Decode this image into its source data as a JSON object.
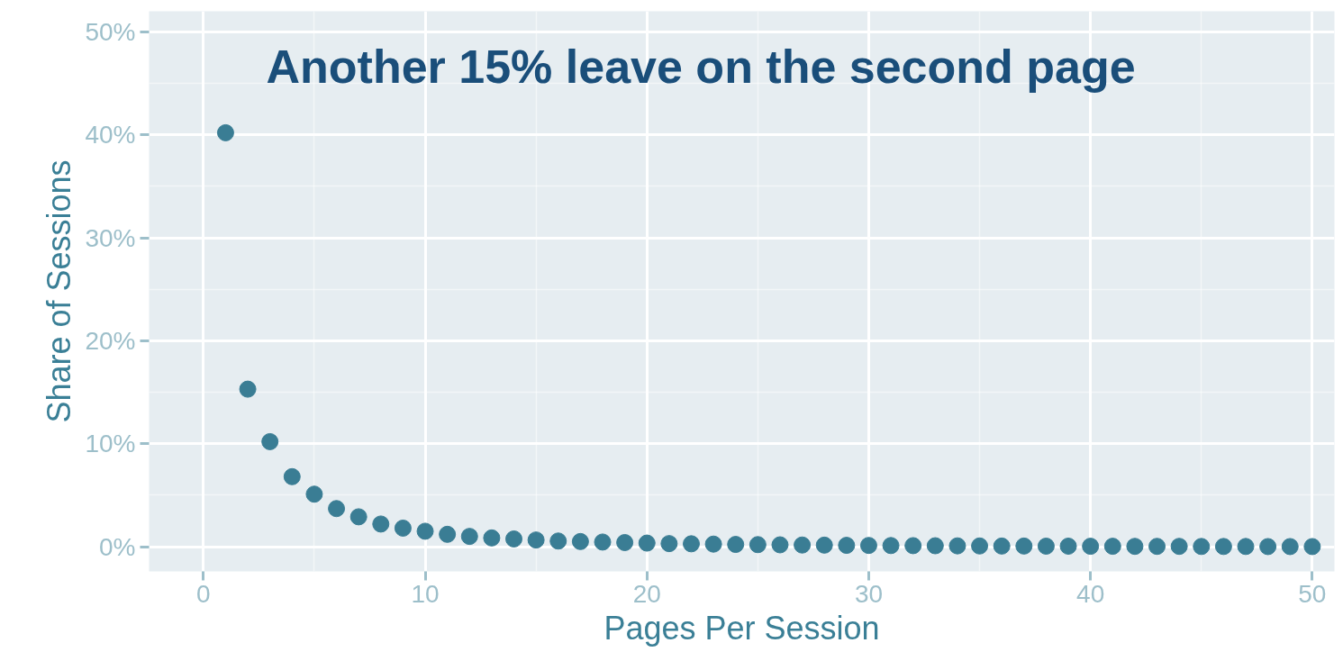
{
  "chart_data": {
    "type": "scatter",
    "xlabel": "Pages Per Session",
    "ylabel": "Share of Sessions",
    "annotations": [
      "Another 15% leave on the second page"
    ],
    "x": [
      1,
      2,
      3,
      4,
      5,
      6,
      7,
      8,
      9,
      10,
      11,
      12,
      13,
      14,
      15,
      16,
      17,
      18,
      19,
      20,
      21,
      22,
      23,
      24,
      25,
      26,
      27,
      28,
      29,
      30,
      31,
      32,
      33,
      34,
      35,
      36,
      37,
      38,
      39,
      40,
      41,
      42,
      43,
      44,
      45,
      46,
      47,
      48,
      49,
      50
    ],
    "series": [
      {
        "color": "#3a7d94",
        "values": [
          40.2,
          15.3,
          10.2,
          6.8,
          5.1,
          3.7,
          2.9,
          2.2,
          1.8,
          1.5,
          1.2,
          1.0,
          0.85,
          0.75,
          0.65,
          0.55,
          0.5,
          0.45,
          0.4,
          0.35,
          0.3,
          0.28,
          0.25,
          0.22,
          0.2,
          0.18,
          0.16,
          0.15,
          0.13,
          0.12,
          0.11,
          0.1,
          0.09,
          0.08,
          0.07,
          0.06,
          0.06,
          0.05,
          0.05,
          0.04,
          0.04,
          0.03,
          0.03,
          0.03,
          0.02,
          0.02,
          0.02,
          0.01,
          0.01,
          0.01
        ]
      }
    ],
    "xlim": [
      -2.45,
      51
    ],
    "ylim": [
      -2.4,
      52
    ],
    "xticks": [
      0,
      10,
      20,
      30,
      40,
      50
    ],
    "yticks": [
      {
        "value": 0,
        "label": "0%"
      },
      {
        "value": 10,
        "label": "10%"
      },
      {
        "value": 20,
        "label": "20%"
      },
      {
        "value": 30,
        "label": "30%"
      },
      {
        "value": 40,
        "label": "40%"
      },
      {
        "value": 50,
        "label": "50%"
      }
    ],
    "grid": true,
    "marker": "circle"
  }
}
